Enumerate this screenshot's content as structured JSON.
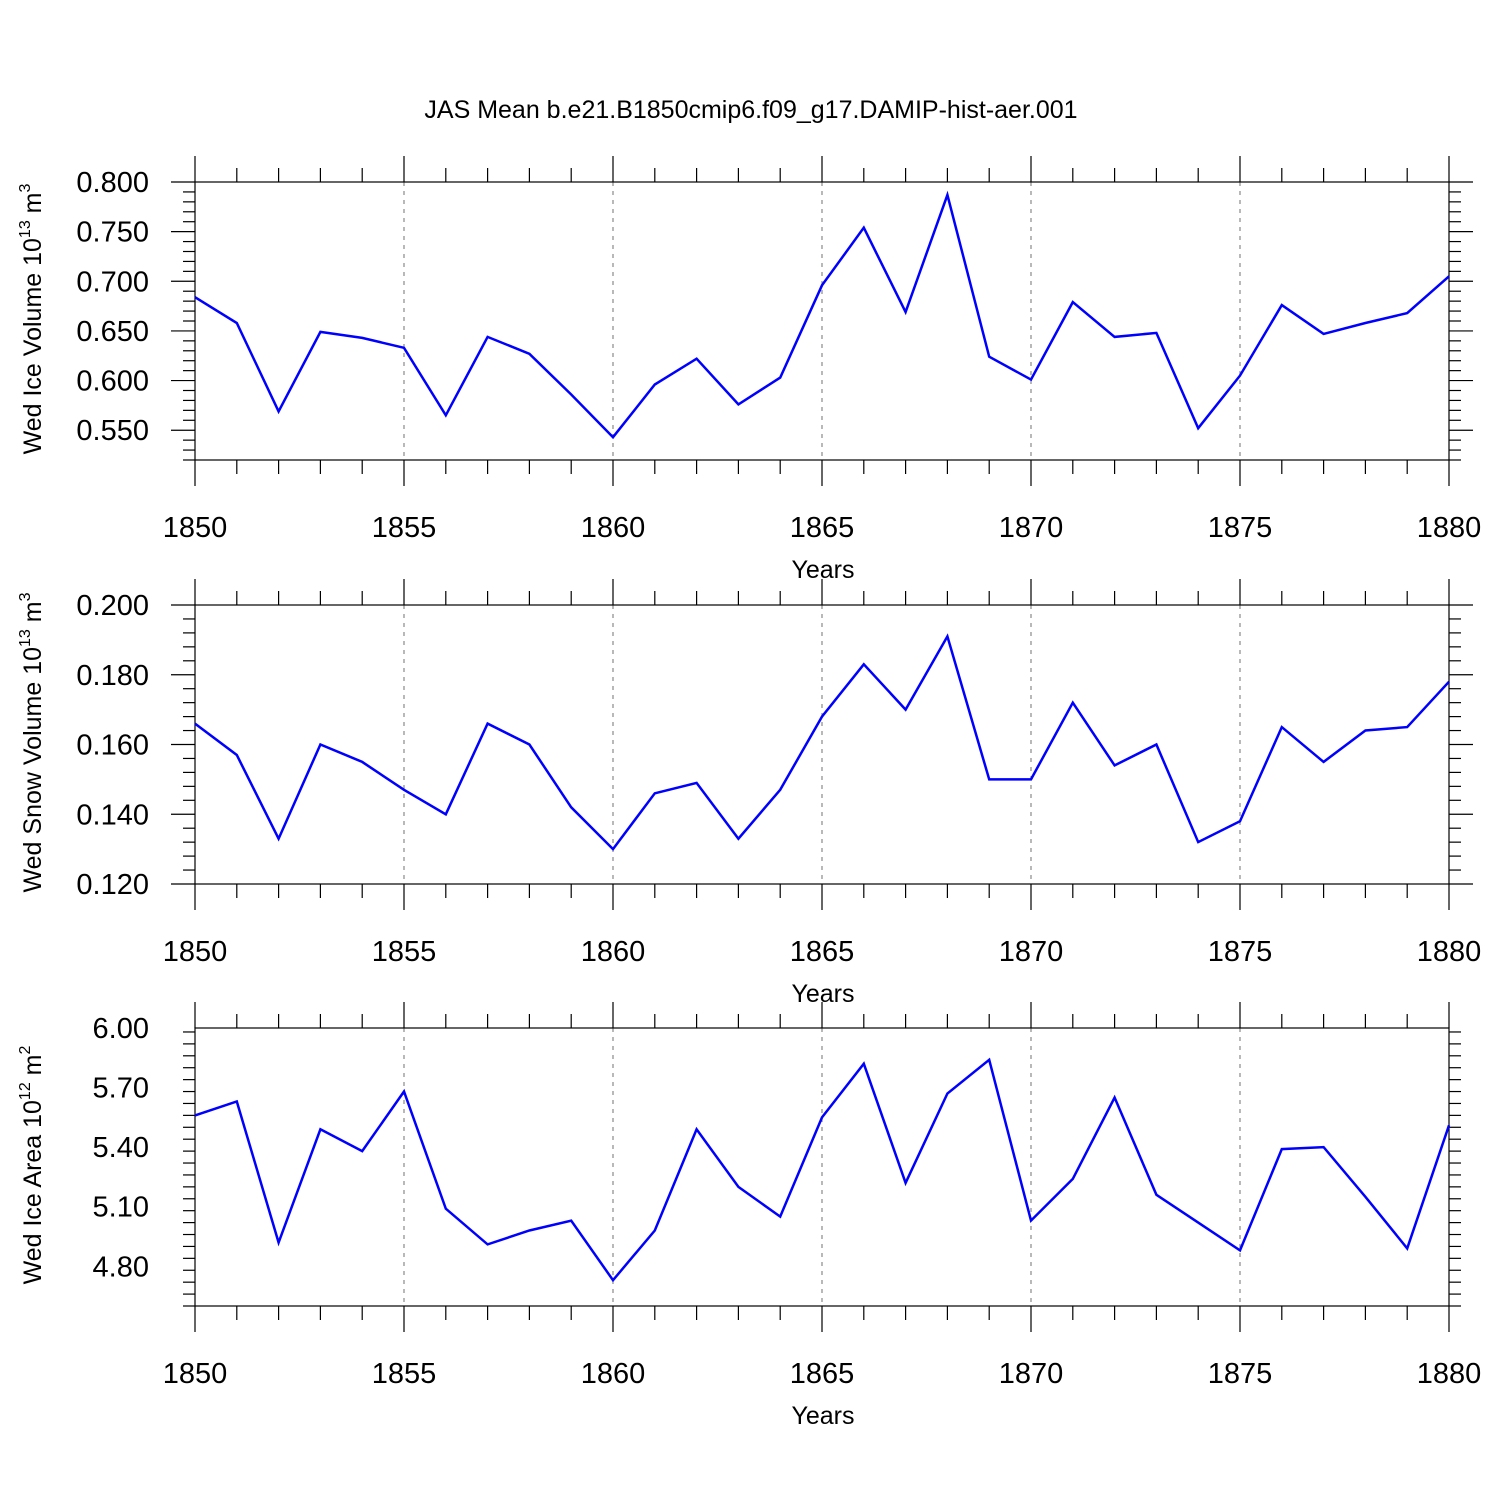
{
  "title": "JAS Mean b.e21.B1850cmip6.f09_g17.DAMIP-hist-aer.001",
  "series_color": "#0000ff",
  "chart_data": [
    {
      "type": "line",
      "title": "JAS Mean b.e21.B1850cmip6.f09_g17.DAMIP-hist-aer.001",
      "xlabel": "Years",
      "ylabel_text": "Wed Ice Volume 10",
      "ylabel_exp": "13",
      "ylabel_unit": " m",
      "ylabel_unit_exp": "3",
      "xlim": [
        1850,
        1880
      ],
      "ylim": [
        0.52,
        0.8
      ],
      "yticks": [
        "0.800",
        "0.750",
        "0.700",
        "0.650",
        "0.600",
        "0.550"
      ],
      "ytick_values": [
        0.8,
        0.75,
        0.7,
        0.65,
        0.6,
        0.55
      ],
      "xticks": [
        "1850",
        "1855",
        "1860",
        "1865",
        "1870",
        "1875",
        "1880"
      ],
      "grid": "dashed vertical at major x ticks",
      "x": [
        1850,
        1851,
        1852,
        1853,
        1854,
        1855,
        1856,
        1857,
        1858,
        1859,
        1860,
        1861,
        1862,
        1863,
        1864,
        1865,
        1866,
        1867,
        1868,
        1869,
        1870,
        1871,
        1872,
        1873,
        1874,
        1875,
        1876,
        1877,
        1878,
        1879,
        1880
      ],
      "values": [
        0.684,
        0.658,
        0.569,
        0.649,
        0.643,
        0.633,
        0.565,
        0.644,
        0.627,
        0.586,
        0.543,
        0.596,
        0.622,
        0.576,
        0.603,
        0.696,
        0.754,
        0.669,
        0.787,
        0.624,
        0.601,
        0.679,
        0.644,
        0.648,
        0.552,
        0.605,
        0.676,
        0.647,
        0.658,
        0.668,
        0.705
      ]
    },
    {
      "type": "line",
      "xlabel": "Years",
      "ylabel_text": "Wed Snow Volume 10",
      "ylabel_exp": "13",
      "ylabel_unit": " m",
      "ylabel_unit_exp": "3",
      "xlim": [
        1850,
        1880
      ],
      "ylim": [
        0.12,
        0.2
      ],
      "yticks": [
        "0.200",
        "0.180",
        "0.160",
        "0.140",
        "0.120"
      ],
      "ytick_values": [
        0.2,
        0.18,
        0.16,
        0.14,
        0.12
      ],
      "xticks": [
        "1850",
        "1855",
        "1860",
        "1865",
        "1870",
        "1875",
        "1880"
      ],
      "grid": "dashed vertical at major x ticks",
      "x": [
        1850,
        1851,
        1852,
        1853,
        1854,
        1855,
        1856,
        1857,
        1858,
        1859,
        1860,
        1861,
        1862,
        1863,
        1864,
        1865,
        1866,
        1867,
        1868,
        1869,
        1870,
        1871,
        1872,
        1873,
        1874,
        1875,
        1876,
        1877,
        1878,
        1879,
        1880
      ],
      "values": [
        0.166,
        0.157,
        0.133,
        0.16,
        0.155,
        0.147,
        0.14,
        0.166,
        0.16,
        0.142,
        0.13,
        0.146,
        0.149,
        0.133,
        0.147,
        0.168,
        0.183,
        0.17,
        0.191,
        0.15,
        0.15,
        0.172,
        0.154,
        0.16,
        0.132,
        0.138,
        0.165,
        0.155,
        0.164,
        0.165,
        0.178
      ]
    },
    {
      "type": "line",
      "xlabel": "Years",
      "ylabel_text": "Wed Ice Area 10",
      "ylabel_exp": "12",
      "ylabel_unit": " m",
      "ylabel_unit_exp": "2",
      "xlim": [
        1850,
        1880
      ],
      "ylim": [
        4.6,
        6.0
      ],
      "yticks": [
        "6.00",
        "5.70",
        "5.40",
        "5.10",
        "4.80"
      ],
      "ytick_values": [
        6.0,
        5.7,
        5.4,
        5.1,
        4.8
      ],
      "xticks": [
        "1850",
        "1855",
        "1860",
        "1865",
        "1870",
        "1875",
        "1880"
      ],
      "grid": "dashed vertical at major x ticks",
      "x": [
        1850,
        1851,
        1852,
        1853,
        1854,
        1855,
        1856,
        1857,
        1858,
        1859,
        1860,
        1861,
        1862,
        1863,
        1864,
        1865,
        1866,
        1867,
        1868,
        1869,
        1870,
        1871,
        1872,
        1873,
        1874,
        1875,
        1876,
        1877,
        1878,
        1879,
        1880
      ],
      "values": [
        5.56,
        5.63,
        4.92,
        5.49,
        5.38,
        5.68,
        5.09,
        4.91,
        4.98,
        5.03,
        4.73,
        4.98,
        5.49,
        5.2,
        5.05,
        5.55,
        5.82,
        5.22,
        5.67,
        5.84,
        5.03,
        5.24,
        5.65,
        5.16,
        5.02,
        4.88,
        5.39,
        5.4,
        5.15,
        4.89,
        5.51
      ]
    }
  ]
}
